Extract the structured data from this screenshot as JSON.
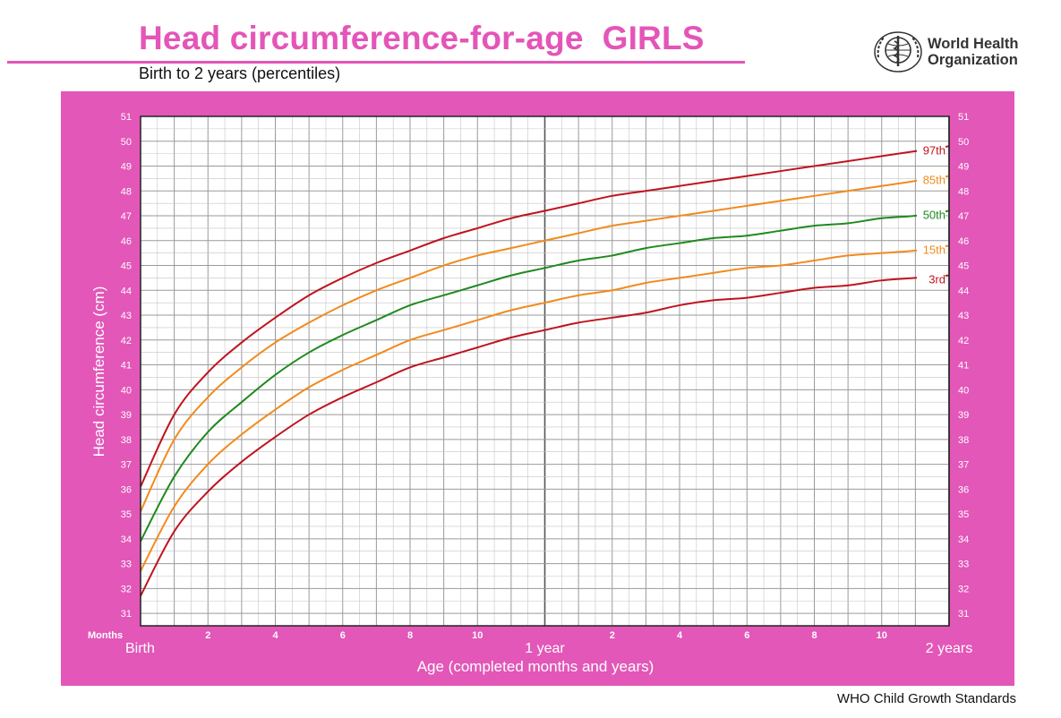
{
  "header": {
    "title": "Head circumference-for-age  GIRLS",
    "subtitle": "Birth to 2 years (percentiles)",
    "org_line1": "World Health",
    "org_line2": "Organization",
    "logo_icon": "who-emblem-icon"
  },
  "footer": {
    "text": "WHO Child Growth Standards"
  },
  "colors": {
    "accent": "#e455b8",
    "panel": "#e257b8",
    "dark_red": "#c0141f",
    "orange": "#f28a1c",
    "green": "#1f8a1f"
  },
  "chart_data": {
    "type": "line",
    "title": "Head circumference-for-age  GIRLS",
    "subtitle": "Birth to 2 years (percentiles)",
    "xlabel": "Age (completed months and years)",
    "ylabel": "Head circumference (cm)",
    "xlim": [
      0,
      24
    ],
    "ylim": [
      30.5,
      51
    ],
    "y_ticks": [
      31,
      32,
      33,
      34,
      35,
      36,
      37,
      38,
      39,
      40,
      41,
      42,
      43,
      44,
      45,
      46,
      47,
      48,
      49,
      50,
      51
    ],
    "x_unit_label": "Months",
    "x_month_ticks": [
      {
        "x": 2,
        "label": "2"
      },
      {
        "x": 4,
        "label": "4"
      },
      {
        "x": 6,
        "label": "6"
      },
      {
        "x": 8,
        "label": "8"
      },
      {
        "x": 10,
        "label": "10"
      },
      {
        "x": 14,
        "label": "2"
      },
      {
        "x": 16,
        "label": "4"
      },
      {
        "x": 18,
        "label": "6"
      },
      {
        "x": 20,
        "label": "8"
      },
      {
        "x": 22,
        "label": "10"
      }
    ],
    "x_year_ticks": [
      {
        "x": 0,
        "label": "Birth"
      },
      {
        "x": 12,
        "label": "1 year"
      },
      {
        "x": 24,
        "label": "2 years"
      }
    ],
    "grid": true,
    "x": [
      0,
      1,
      2,
      3,
      4,
      5,
      6,
      7,
      8,
      9,
      10,
      11,
      12,
      13,
      14,
      15,
      16,
      17,
      18,
      19,
      20,
      21,
      22,
      23,
      24
    ],
    "series": [
      {
        "name": "97th",
        "color": "#c0141f",
        "values": [
          36.1,
          39.0,
          40.7,
          41.9,
          42.9,
          43.8,
          44.5,
          45.1,
          45.6,
          46.1,
          46.5,
          46.9,
          47.2,
          47.5,
          47.8,
          48.0,
          48.2,
          48.4,
          48.6,
          48.8,
          49.0,
          49.2,
          49.4,
          49.6,
          49.8
        ]
      },
      {
        "name": "85th",
        "color": "#f28a1c",
        "values": [
          35.1,
          38.0,
          39.7,
          40.9,
          41.9,
          42.7,
          43.4,
          44.0,
          44.5,
          45.0,
          45.4,
          45.7,
          46.0,
          46.3,
          46.6,
          46.8,
          47.0,
          47.2,
          47.4,
          47.6,
          47.8,
          48.0,
          48.2,
          48.4,
          48.6
        ]
      },
      {
        "name": "50th",
        "color": "#1f8a1f",
        "values": [
          33.9,
          36.5,
          38.3,
          39.5,
          40.6,
          41.5,
          42.2,
          42.8,
          43.4,
          43.8,
          44.2,
          44.6,
          44.9,
          45.2,
          45.4,
          45.7,
          45.9,
          46.1,
          46.2,
          46.4,
          46.6,
          46.7,
          46.9,
          47.0,
          47.2
        ]
      },
      {
        "name": "15th",
        "color": "#f28a1c",
        "values": [
          32.7,
          35.3,
          37.0,
          38.2,
          39.2,
          40.1,
          40.8,
          41.4,
          42.0,
          42.4,
          42.8,
          43.2,
          43.5,
          43.8,
          44.0,
          44.3,
          44.5,
          44.7,
          44.9,
          45.0,
          45.2,
          45.4,
          45.5,
          45.6,
          45.8
        ]
      },
      {
        "name": "3rd",
        "color": "#c0141f",
        "values": [
          31.7,
          34.3,
          35.9,
          37.1,
          38.1,
          39.0,
          39.7,
          40.3,
          40.9,
          41.3,
          41.7,
          42.1,
          42.4,
          42.7,
          42.9,
          43.1,
          43.4,
          43.6,
          43.7,
          43.9,
          44.1,
          44.2,
          44.4,
          44.5,
          44.6
        ]
      }
    ]
  }
}
